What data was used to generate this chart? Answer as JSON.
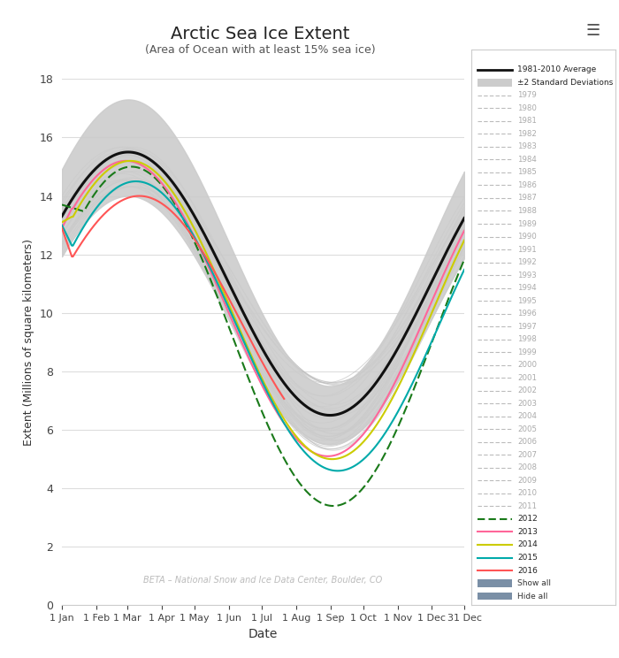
{
  "title": "Arctic Sea Ice Extent",
  "subtitle": "(Area of Ocean with at least 15% sea ice)",
  "xlabel": "Date",
  "ylabel": "Extent (Millions of square kilometers)",
  "watermark": "BETA – National Snow and Ice Data Center, Boulder, CO",
  "ylim": [
    0,
    18
  ],
  "yticks": [
    0,
    2,
    4,
    6,
    8,
    10,
    12,
    14,
    16,
    18
  ],
  "avg_color": "#111111",
  "std_color": "#cccccc",
  "year_colors": {
    "2012": "#1a7a1a",
    "2013": "#ff6699",
    "2014": "#cccc00",
    "2015": "#00aaaa",
    "2016": "#ff5555"
  },
  "ghost_color": "#bbbbbb",
  "bg_color": "#ffffff",
  "grid_color": "#dddddd",
  "hamburger_color": "#555555",
  "legend_edge": "#cccccc",
  "show_hide_color": "#7a8fa6"
}
